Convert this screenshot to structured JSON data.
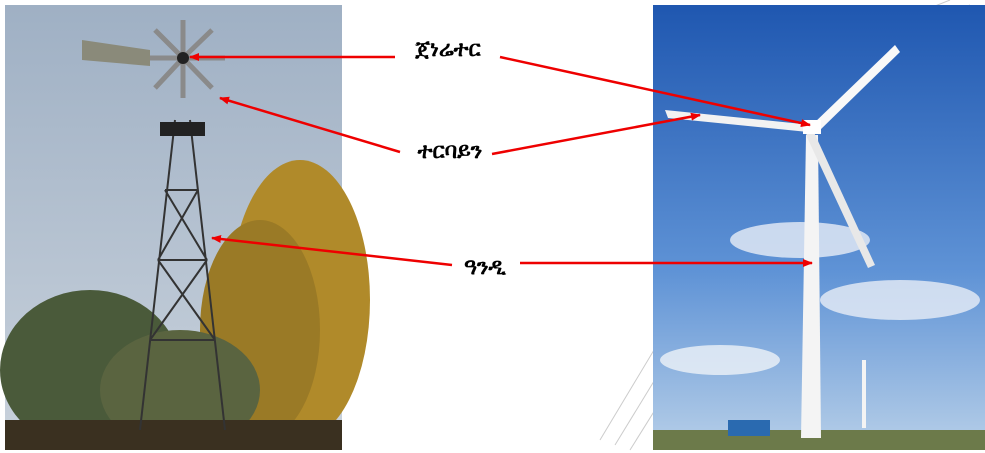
{
  "labels": {
    "generator": "ጀነሬተር",
    "turbine": "ተርባይን",
    "tower": "ዓንዲ"
  }
}
